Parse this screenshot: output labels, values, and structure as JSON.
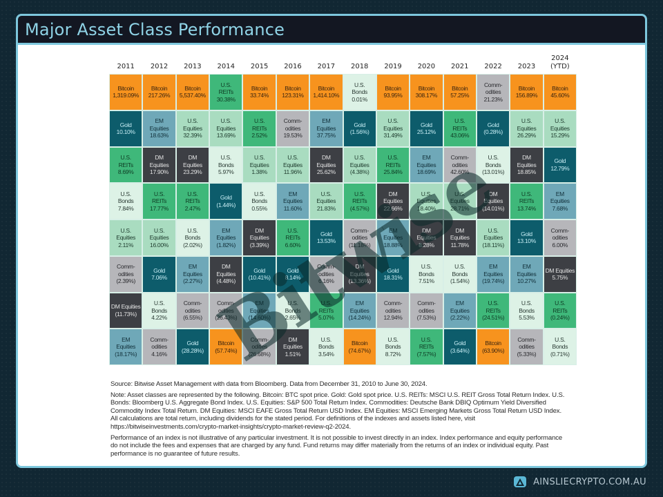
{
  "header": {
    "title": "Major Asset Class Performance"
  },
  "colors": {
    "Bitcoin": {
      "bg": "#f7931e",
      "fg": "#3a2410"
    },
    "Gold": {
      "bg": "#0d5c6b",
      "fg": "#c8eef5"
    },
    "EM Equities": {
      "bg": "#6fa8b8",
      "fg": "#12303a"
    },
    "U.S. Equities": {
      "bg": "#a9dcc0",
      "fg": "#1d3a2c"
    },
    "U.S. REITs": {
      "bg": "#3fb87a",
      "fg": "#0e3a23"
    },
    "DM Equities": {
      "bg": "#3d3f44",
      "fg": "#e2e2e2"
    },
    "U.S. Bonds": {
      "bg": "#ddf2e6",
      "fg": "#2a3a33"
    },
    "Commodities": {
      "bg": "#b6b6ba",
      "fg": "#2a2a2e"
    }
  },
  "chart_data": {
    "type": "table",
    "title": "Major Asset Class Performance",
    "categories": [
      "2011",
      "2012",
      "2013",
      "2014",
      "2015",
      "2016",
      "2017",
      "2018",
      "2019",
      "2020",
      "2021",
      "2022",
      "2023",
      "2024 (YTD)"
    ],
    "columns": [
      {
        "year": "2011",
        "cells": [
          {
            "asset": "Bitcoin",
            "label": "Bitcoin",
            "value": "1,319.09%"
          },
          {
            "asset": "Gold",
            "label": "Gold",
            "value": "10.10%"
          },
          {
            "asset": "U.S. REITs",
            "label": "U.S.\nREITs",
            "value": "8.69%"
          },
          {
            "asset": "U.S. Bonds",
            "label": "U.S.\nBonds",
            "value": "7.84%"
          },
          {
            "asset": "U.S. Equities",
            "label": "U.S.\nEquities",
            "value": "2.11%"
          },
          {
            "asset": "Commodities",
            "label": "Comm-\nodities",
            "value": "(2.39%)"
          },
          {
            "asset": "DM Equities",
            "label": "DM Equities",
            "value": "(11.73%)"
          },
          {
            "asset": "EM Equities",
            "label": "EM\nEquities",
            "value": "(18.17%)"
          }
        ]
      },
      {
        "year": "2012",
        "cells": [
          {
            "asset": "Bitcoin",
            "label": "Bitcoin",
            "value": "217.26%"
          },
          {
            "asset": "EM Equities",
            "label": "EM\nEquities",
            "value": "18.63%"
          },
          {
            "asset": "DM Equities",
            "label": "DM\nEquities",
            "value": "17.90%"
          },
          {
            "asset": "U.S. REITs",
            "label": "U.S.\nREITs",
            "value": "17.77%"
          },
          {
            "asset": "U.S. Equities",
            "label": "U.S.\nEquities",
            "value": "16.00%"
          },
          {
            "asset": "Gold",
            "label": "Gold",
            "value": "7.06%"
          },
          {
            "asset": "U.S. Bonds",
            "label": "U.S.\nBonds",
            "value": "4.22%"
          },
          {
            "asset": "Commodities",
            "label": "Comm-\nodities",
            "value": "4.16%"
          }
        ]
      },
      {
        "year": "2013",
        "cells": [
          {
            "asset": "Bitcoin",
            "label": "Bitcoin",
            "value": "5,537.40%"
          },
          {
            "asset": "U.S. Equities",
            "label": "U.S.\nEquities",
            "value": "32.39%"
          },
          {
            "asset": "DM Equities",
            "label": "DM\nEquities",
            "value": "23.29%"
          },
          {
            "asset": "U.S. REITs",
            "label": "U.S.\nREITs",
            "value": "2.47%"
          },
          {
            "asset": "U.S. Bonds",
            "label": "U.S.\nBonds",
            "value": "(2.02%)"
          },
          {
            "asset": "EM Equities",
            "label": "EM\nEquities",
            "value": "(2.27%)"
          },
          {
            "asset": "Commodities",
            "label": "Comm-\nodities",
            "value": "(6.55%)"
          },
          {
            "asset": "Gold",
            "label": "Gold",
            "value": "(28.28%)"
          }
        ]
      },
      {
        "year": "2014",
        "cells": [
          {
            "asset": "U.S. REITs",
            "label": "U.S.\nREITs",
            "value": "30.38%"
          },
          {
            "asset": "U.S. Equities",
            "label": "U.S.\nEquities",
            "value": "13.69%"
          },
          {
            "asset": "U.S. Bonds",
            "label": "U.S.\nBonds",
            "value": "5.97%"
          },
          {
            "asset": "Gold",
            "label": "Gold",
            "value": "(1.44%)"
          },
          {
            "asset": "EM Equities",
            "label": "EM\nEquities",
            "value": "(1.82%)"
          },
          {
            "asset": "DM Equities",
            "label": "DM\nEquities",
            "value": "(4.48%)"
          },
          {
            "asset": "Commodities",
            "label": "Comm-\nodities",
            "value": "(26.43%)"
          },
          {
            "asset": "Bitcoin",
            "label": "Bitcoin",
            "value": "(57.74%)"
          }
        ]
      },
      {
        "year": "2015",
        "cells": [
          {
            "asset": "Bitcoin",
            "label": "Bitcoin",
            "value": "33.74%"
          },
          {
            "asset": "U.S. REITs",
            "label": "U.S.\nREITs",
            "value": "2.52%"
          },
          {
            "asset": "U.S. Equities",
            "label": "U.S.\nEquities",
            "value": "1.38%"
          },
          {
            "asset": "U.S. Bonds",
            "label": "U.S.\nBonds",
            "value": "0.55%"
          },
          {
            "asset": "DM Equities",
            "label": "DM\nEquities",
            "value": "(3.39%)"
          },
          {
            "asset": "Gold",
            "label": "Gold",
            "value": "(10.41%)"
          },
          {
            "asset": "EM Equities",
            "label": "EM\nEquities",
            "value": "(14.60%)"
          },
          {
            "asset": "Commodities",
            "label": "Comm-\nodities",
            "value": "(26.68%)"
          }
        ]
      },
      {
        "year": "2016",
        "cells": [
          {
            "asset": "Bitcoin",
            "label": "Bitcoin",
            "value": "123.31%"
          },
          {
            "asset": "Commodities",
            "label": "Comm-\nodities",
            "value": "19.53%"
          },
          {
            "asset": "U.S. Equities",
            "label": "U.S.\nEquities",
            "value": "11.96%"
          },
          {
            "asset": "EM Equities",
            "label": "EM\nEquities",
            "value": "11.60%"
          },
          {
            "asset": "U.S. REITs",
            "label": "U.S.\nREITs",
            "value": "6.60%"
          },
          {
            "asset": "Gold",
            "label": "Gold",
            "value": "8.14%"
          },
          {
            "asset": "U.S. Bonds",
            "label": "U.S.\nBonds",
            "value": "2.65%"
          },
          {
            "asset": "DM Equities",
            "label": "DM\nEquities",
            "value": "1.51%"
          }
        ]
      },
      {
        "year": "2017",
        "cells": [
          {
            "asset": "Bitcoin",
            "label": "Bitcoin",
            "value": "1,414.10%"
          },
          {
            "asset": "EM Equities",
            "label": "EM\nEquities",
            "value": "37.75%"
          },
          {
            "asset": "DM Equities",
            "label": "DM\nEquities",
            "value": "25.62%"
          },
          {
            "asset": "U.S. Equities",
            "label": "U.S.\nEquities",
            "value": "21.83%"
          },
          {
            "asset": "Gold",
            "label": "Gold",
            "value": "13.53%"
          },
          {
            "asset": "Commodities",
            "label": "Comm-\nodities",
            "value": "6.16%"
          },
          {
            "asset": "U.S. REITs",
            "label": "U.S.\nREITs",
            "value": "5.07%"
          },
          {
            "asset": "U.S. Bonds",
            "label": "U.S.\nBonds",
            "value": "3.54%"
          }
        ]
      },
      {
        "year": "2018",
        "cells": [
          {
            "asset": "U.S. Bonds",
            "label": "U.S.\nBonds",
            "value": "0.01%"
          },
          {
            "asset": "Gold",
            "label": "Gold",
            "value": "(1.56%)"
          },
          {
            "asset": "U.S. Equities",
            "label": "U.S.\nEquities",
            "value": "(4.38%)"
          },
          {
            "asset": "U.S. REITs",
            "label": "U.S.\nREITs",
            "value": "(4.57%)"
          },
          {
            "asset": "Commodities",
            "label": "Comm-\nodities",
            "value": "(11.18%)"
          },
          {
            "asset": "DM Equities",
            "label": "DM\nEquities",
            "value": "(13.36%)"
          },
          {
            "asset": "EM Equities",
            "label": "EM\nEquities",
            "value": "(14.24%)"
          },
          {
            "asset": "Bitcoin",
            "label": "Bitcoin",
            "value": "(74.67%)"
          }
        ]
      },
      {
        "year": "2019",
        "cells": [
          {
            "asset": "Bitcoin",
            "label": "Bitcoin",
            "value": "93.95%"
          },
          {
            "asset": "U.S. Equities",
            "label": "U.S.\nEquities",
            "value": "31.49%"
          },
          {
            "asset": "U.S. REITs",
            "label": "U.S.\nREITs",
            "value": "25.84%"
          },
          {
            "asset": "DM Equities",
            "label": "DM\nEquities",
            "value": "22.66%"
          },
          {
            "asset": "EM Equities",
            "label": "EM\nEquities",
            "value": "18.88%"
          },
          {
            "asset": "Gold",
            "label": "Gold",
            "value": "18.31%"
          },
          {
            "asset": "Commodities",
            "label": "Comm-\nodities",
            "value": "12.94%"
          },
          {
            "asset": "U.S. Bonds",
            "label": "U.S.\nBonds",
            "value": "8.72%"
          }
        ]
      },
      {
        "year": "2020",
        "cells": [
          {
            "asset": "Bitcoin",
            "label": "Bitcoin",
            "value": "308.17%"
          },
          {
            "asset": "Gold",
            "label": "Gold",
            "value": "25.12%"
          },
          {
            "asset": "EM Equities",
            "label": "EM\nEquities",
            "value": "18.69%"
          },
          {
            "asset": "U.S. Equities",
            "label": "U.S.\nEquities",
            "value": "18.40%"
          },
          {
            "asset": "DM Equities",
            "label": "DM\nEquities",
            "value": "8.28%"
          },
          {
            "asset": "U.S. Bonds",
            "label": "U.S.\nBonds",
            "value": "7.51%"
          },
          {
            "asset": "Commodities",
            "label": "Comm-\nodities",
            "value": "(7.53%)"
          },
          {
            "asset": "U.S. REITs",
            "label": "U.S.\nREITs",
            "value": "(7.57%)"
          }
        ]
      },
      {
        "year": "2021",
        "cells": [
          {
            "asset": "Bitcoin",
            "label": "Bitcoin",
            "value": "57.25%"
          },
          {
            "asset": "U.S. REITs",
            "label": "U.S.\nREITs",
            "value": "43.06%"
          },
          {
            "asset": "Commodities",
            "label": "Comm-\nodities",
            "value": "42.60%"
          },
          {
            "asset": "U.S. Equities",
            "label": "U.S.\nEquities",
            "value": "28.71%"
          },
          {
            "asset": "DM Equities",
            "label": "DM\nEquities",
            "value": "11.78%"
          },
          {
            "asset": "U.S. Bonds",
            "label": "U.S.\nBonds",
            "value": "(1.54%)"
          },
          {
            "asset": "EM Equities",
            "label": "EM\nEquities",
            "value": "(2.22%)"
          },
          {
            "asset": "Gold",
            "label": "Gold",
            "value": "(3.64%)"
          }
        ]
      },
      {
        "year": "2022",
        "cells": [
          {
            "asset": "Commodities",
            "label": "Comm-\nodities",
            "value": "21.23%"
          },
          {
            "asset": "Gold",
            "label": "Gold",
            "value": "(0.28%)"
          },
          {
            "asset": "U.S. Bonds",
            "label": "U.S.\nBonds",
            "value": "(13.01%)"
          },
          {
            "asset": "DM Equities",
            "label": "DM\nEquities",
            "value": "(14.01%)"
          },
          {
            "asset": "U.S. Equities",
            "label": "U.S.\nEquities",
            "value": "(18.11%)"
          },
          {
            "asset": "EM Equities",
            "label": "EM\nEquities",
            "value": "(19.74%)"
          },
          {
            "asset": "U.S. REITs",
            "label": "U.S.\nREITs",
            "value": "(24.51%)"
          },
          {
            "asset": "Bitcoin",
            "label": "Bitcoin",
            "value": "(63.90%)"
          }
        ]
      },
      {
        "year": "2023",
        "cells": [
          {
            "asset": "Bitcoin",
            "label": "Bitcoin",
            "value": "156.89%"
          },
          {
            "asset": "U.S. Equities",
            "label": "U.S.\nEquities",
            "value": "26.29%"
          },
          {
            "asset": "DM Equities",
            "label": "DM\nEquities",
            "value": "18.85%"
          },
          {
            "asset": "U.S. REITs",
            "label": "U.S.\nREITs",
            "value": "13.74%"
          },
          {
            "asset": "Gold",
            "label": "Gold",
            "value": "13.10%"
          },
          {
            "asset": "EM Equities",
            "label": "EM\nEquities",
            "value": "10.27%"
          },
          {
            "asset": "U.S. Bonds",
            "label": "U.S.\nBonds",
            "value": "5.53%"
          },
          {
            "asset": "Commodities",
            "label": "Comm-\nodities",
            "value": "(5.33%)"
          }
        ]
      },
      {
        "year": "2024 (YTD)",
        "cells": [
          {
            "asset": "Bitcoin",
            "label": "Bitcoin",
            "value": "45.60%"
          },
          {
            "asset": "U.S. Equities",
            "label": "U.S.\nEquities",
            "value": "15.29%"
          },
          {
            "asset": "Gold",
            "label": "Gold",
            "value": "12.79%"
          },
          {
            "asset": "EM Equities",
            "label": "EM\nEquities",
            "value": "7.68%"
          },
          {
            "asset": "Commodities",
            "label": "Comm-\nodities",
            "value": "6.00%"
          },
          {
            "asset": "DM Equities",
            "label": "DM Equities",
            "value": "5.75%"
          },
          {
            "asset": "U.S. REITs",
            "label": "U.S.\nREITs",
            "value": "(0.24%)"
          },
          {
            "asset": "U.S. Bonds",
            "label": "U.S.\nBonds",
            "value": "(0.71%)"
          }
        ]
      }
    ],
    "xlabel": "",
    "ylabel": "",
    "legend": "none",
    "grid": true
  },
  "notes": {
    "source": "Source: Bitwise Asset Management with data from Bloomberg. Data from December 31, 2010 to June 30, 2024.",
    "note": "Note: Asset classes are represented by the following. Bitcoin: BTC spot price. Gold: Gold spot price. U.S. REITs: MSCI U.S. REIT Gross Total Return Index. U.S. Bonds: Bloomberg U.S. Aggregate Bond Index. U.S. Equities: S&P 500 Total Return Index. Commodities: Deutsche Bank DBIQ Optimum Yield Diversified Commodity Index Total Return. DM Equities: MSCI EAFE Gross Total Return USD Index. EM Equities: MSCI Emerging Markets Gross Total Return USD Index. All calculations are total return, including dividends for the stated period. For definitions of the indexes and assets listed here, visit https://bitwiseinvestments.com/crypto-market-insights/crypto-market-review-q2-2024.",
    "disclaimer": "Performance of an index is not illustrative of any particular investment. It is not possible to invest directly in an index. Index performance and equity performance do not include the fees and expenses that are charged by any fund. Fund returns may differ materially from the returns of an index or individual equity. Past performance is no guarantee of future results."
  },
  "watermark": {
    "text": "Bitwise"
  },
  "footer": {
    "brand": "AINSLIECRYPTO.COM.AU",
    "logo_icon": "ainslie-logo-icon"
  }
}
